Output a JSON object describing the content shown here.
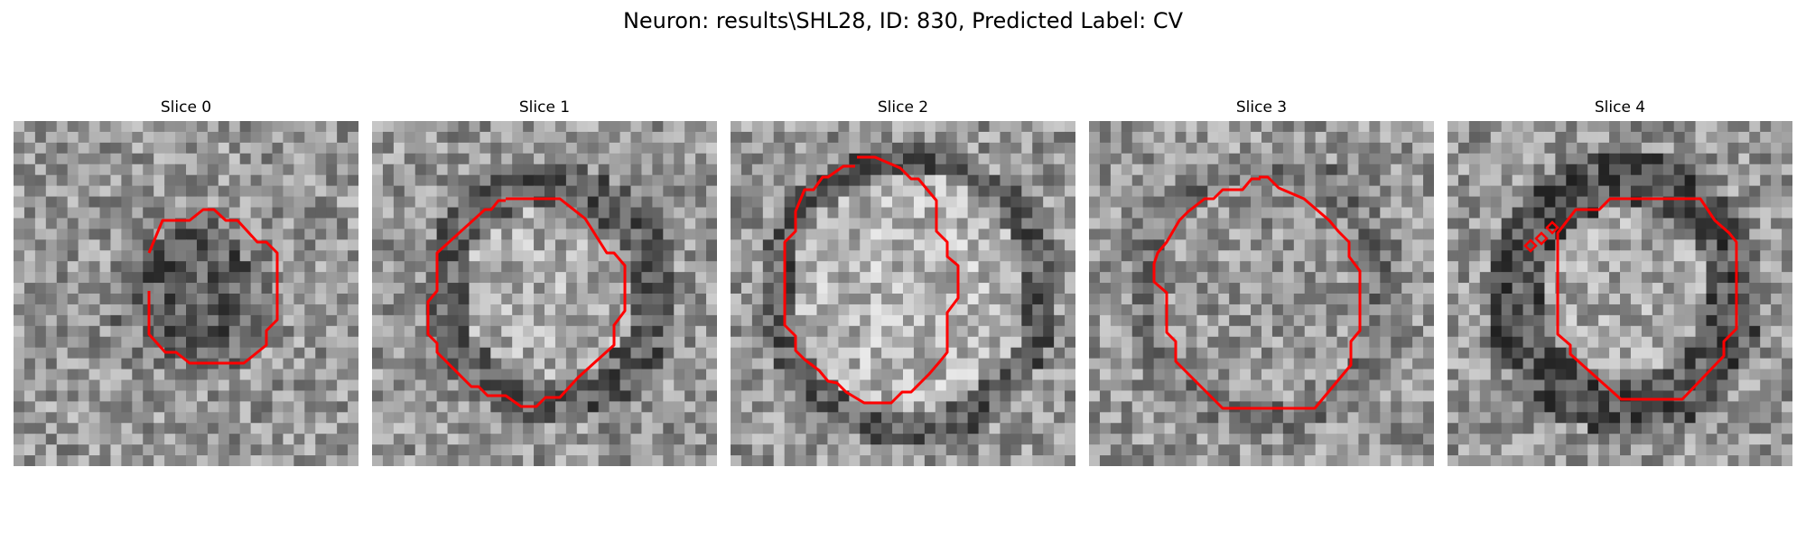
{
  "figure": {
    "title": "Neuron: results\\SHL28, ID: 830, Predicted Label: CV"
  },
  "colors": {
    "contour": "#ff0000",
    "background": "#ffffff"
  },
  "slices": [
    {
      "label": "Slice 0",
      "texture": "dark-core"
    },
    {
      "label": "Slice 1",
      "texture": "ring"
    },
    {
      "label": "Slice 2",
      "texture": "bright-core"
    },
    {
      "label": "Slice 3",
      "texture": "mid-core"
    },
    {
      "label": "Slice 4",
      "texture": "dark-ring"
    }
  ]
}
